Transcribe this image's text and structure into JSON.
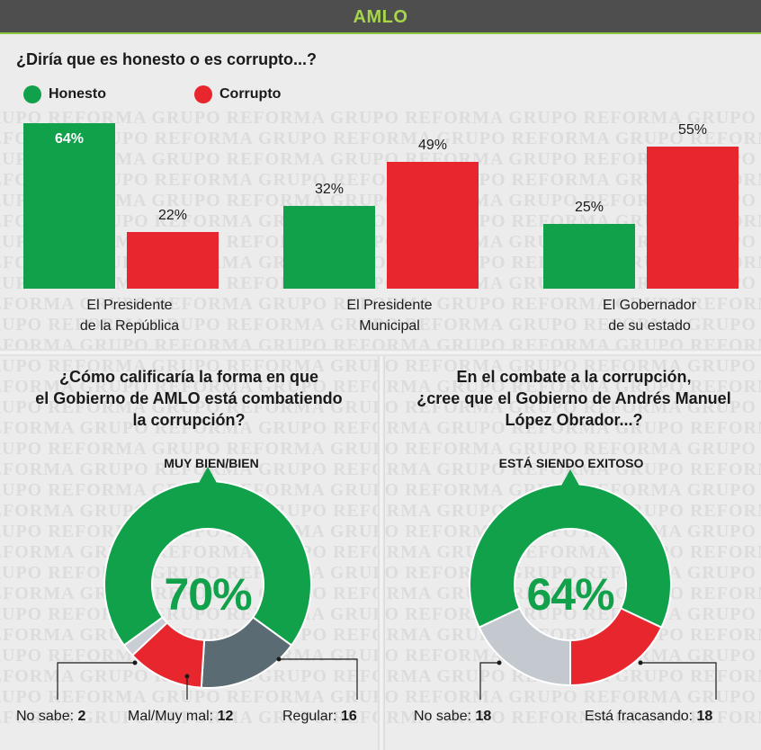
{
  "header": {
    "title": "AMLO"
  },
  "watermark_text": "GRUPO REFORMA",
  "colors": {
    "green": "#12a14b",
    "red": "#e8262d",
    "darkgray": "#5b6b74",
    "lightgray": "#c8ced4",
    "lightgray2": "#c3c9cf"
  },
  "question1": "¿Diría que es honesto o es corrupto...?",
  "chart_data": [
    {
      "type": "bar",
      "title": "¿Diría que es honesto o es corrupto...?",
      "categories": [
        [
          "El Presidente",
          "de la República"
        ],
        [
          "El Presidente",
          "Municipal"
        ],
        [
          "El Gobernador",
          "de su estado"
        ]
      ],
      "series": [
        {
          "name": "Honesto",
          "color": "#12a14b",
          "values": [
            64,
            32,
            25
          ],
          "labels": [
            "64%",
            "32%",
            "25%"
          ]
        },
        {
          "name": "Corrupto",
          "color": "#e8262d",
          "values": [
            22,
            49,
            55
          ],
          "labels": [
            "22%",
            "49%",
            "55%"
          ]
        }
      ],
      "ylim": [
        0,
        64
      ]
    },
    {
      "type": "pie",
      "title": [
        "¿Cómo calificaría la forma en que",
        "el Gobierno de AMLO está combatiendo",
        "la corrupción?"
      ],
      "highlight_label": "MUY BIEN/BIEN",
      "highlight_value": "70%",
      "slices": [
        {
          "name": "Muy bien/Bien",
          "value": 70,
          "color": "#12a14b"
        },
        {
          "name": "Regular",
          "value": 16,
          "color": "#5b6b74"
        },
        {
          "name": "Mal/Muy mal",
          "value": 12,
          "color": "#e8262d"
        },
        {
          "name": "No sabe",
          "value": 2,
          "color": "#c8ced4"
        }
      ],
      "footer": [
        {
          "label": "No sabe:",
          "value": "2"
        },
        {
          "label": "Mal/Muy mal:",
          "value": "12"
        },
        {
          "label": "Regular:",
          "value": "16"
        }
      ]
    },
    {
      "type": "pie",
      "title": [
        "En el combate a la corrupción,",
        "¿cree que el Gobierno de Andrés Manuel",
        "López Obrador...?"
      ],
      "highlight_label": "ESTÁ SIENDO EXITOSO",
      "highlight_value": "64%",
      "slices": [
        {
          "name": "Está siendo exitoso",
          "value": 64,
          "color": "#12a14b"
        },
        {
          "name": "Está fracasando",
          "value": 18,
          "color": "#e8262d"
        },
        {
          "name": "No sabe",
          "value": 18,
          "color": "#c3c9cf"
        }
      ],
      "footer": [
        {
          "label": "No sabe:",
          "value": "18"
        },
        {
          "label": "Está fracasando:",
          "value": "18"
        }
      ]
    }
  ]
}
